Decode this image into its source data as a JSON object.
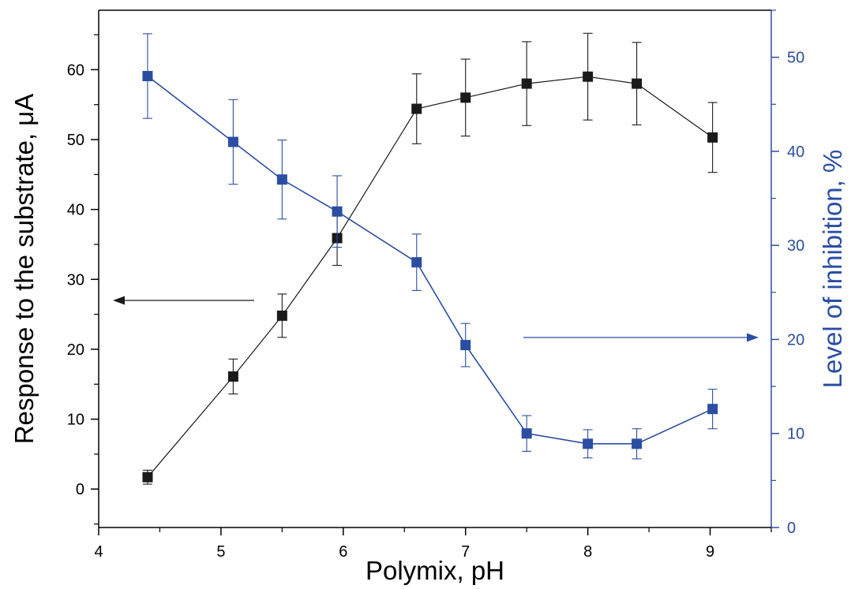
{
  "chart_data": {
    "type": "scatter",
    "xlabel": "Polymix, pH",
    "ylabel_left": "Response to the substrate, μA",
    "ylabel_right": "Level of inhibition, %",
    "xlim": [
      4,
      9.5
    ],
    "ylim_left": [
      -5.5,
      68.5
    ],
    "ylim_right": [
      0,
      55
    ],
    "x_ticks": [
      "4",
      "5",
      "6",
      "7",
      "8",
      "9"
    ],
    "y_left_ticks": [
      "0",
      "10",
      "20",
      "30",
      "40",
      "50",
      "60"
    ],
    "y_right_ticks": [
      "0",
      "10",
      "20",
      "30",
      "40",
      "50"
    ],
    "colors": {
      "left_series": "#1a1a1a",
      "right_series": "#2b4ea2",
      "axes": "#000000"
    },
    "series": [
      {
        "axis": "left",
        "marker": "square",
        "x": [
          4.4,
          5.1,
          5.5,
          5.95,
          6.6,
          7.0,
          7.5,
          8.0,
          8.4,
          9.02
        ],
        "y": [
          1.7,
          16.1,
          24.8,
          35.9,
          54.4,
          56.0,
          58.0,
          59.0,
          58.0,
          50.3
        ],
        "err": [
          1.0,
          2.5,
          3.1,
          3.9,
          5.0,
          5.5,
          6.0,
          6.2,
          5.9,
          5.0
        ]
      },
      {
        "axis": "right",
        "marker": "square",
        "x": [
          4.4,
          5.1,
          5.5,
          5.95,
          6.6,
          7.0,
          7.5,
          8.0,
          8.4,
          9.02
        ],
        "y": [
          48.0,
          41.0,
          37.0,
          33.6,
          28.2,
          19.4,
          10.0,
          8.9,
          8.9,
          12.6
        ],
        "err": [
          4.5,
          4.5,
          4.2,
          3.8,
          3.0,
          2.3,
          1.9,
          1.5,
          1.6,
          2.1
        ]
      }
    ]
  }
}
